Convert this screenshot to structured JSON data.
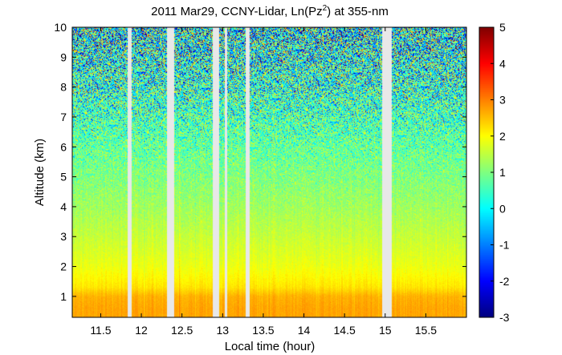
{
  "chart_data": {
    "type": "heatmap",
    "title_prefix": "2011 Mar29, CCNY-Lidar, Ln(Pz",
    "title_sup": "2",
    "title_suffix": ") at 355-nm",
    "xlabel": "Local time (hour)",
    "ylabel": "Altitude (km)",
    "xlim": [
      11.15,
      16.0
    ],
    "ylim": [
      0.3,
      10
    ],
    "x_ticks": [
      11.5,
      12,
      12.5,
      13,
      13.5,
      14,
      14.5,
      15,
      15.5
    ],
    "x_tick_labels": [
      "11.5",
      "12",
      "12.5",
      "13",
      "13.5",
      "14",
      "14.5",
      "15",
      "15.5"
    ],
    "y_ticks": [
      1,
      2,
      3,
      4,
      5,
      6,
      7,
      8,
      9,
      10
    ],
    "y_tick_labels": [
      "1",
      "2",
      "3",
      "4",
      "5",
      "6",
      "7",
      "8",
      "9",
      "10"
    ],
    "colorbar": {
      "range": [
        -3,
        5
      ],
      "ticks": [
        -3,
        -2,
        -1,
        0,
        1,
        2,
        3,
        4,
        5
      ],
      "tick_labels": [
        "-3",
        "-2",
        "-1",
        "0",
        "1",
        "2",
        "3",
        "4",
        "5"
      ],
      "colormap": "jet"
    },
    "data_gaps_hours": [
      [
        11.83,
        11.88
      ],
      [
        12.32,
        12.4
      ],
      [
        12.88,
        12.96
      ],
      [
        13.03,
        13.06
      ],
      [
        13.28,
        13.33
      ],
      [
        14.96,
        15.08
      ]
    ],
    "profile_summary": {
      "altitude_km": [
        0.3,
        0.6,
        1.0,
        1.3,
        2.0,
        3.0,
        4.0,
        5.0,
        6.0,
        7.0,
        8.0,
        9.0,
        10.0
      ],
      "mean_value": [
        2.7,
        2.7,
        2.6,
        2.2,
        1.85,
        1.55,
        1.25,
        1.0,
        0.75,
        0.5,
        0.3,
        0.15,
        0.0
      ],
      "noise_std": [
        0.05,
        0.05,
        0.05,
        0.05,
        0.08,
        0.12,
        0.2,
        0.35,
        0.6,
        0.95,
        1.3,
        1.6,
        1.9
      ]
    },
    "grid": false,
    "background_color": "#e8e8e8"
  }
}
